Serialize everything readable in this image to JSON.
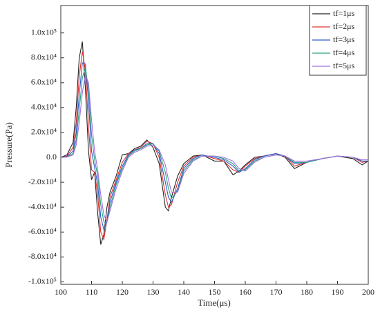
{
  "chart_data": {
    "type": "line",
    "xlabel": "Time(μs)",
    "ylabel": "Pressure(Pa)",
    "x": [
      100,
      102,
      104,
      105,
      106,
      107,
      108,
      109,
      110,
      111,
      112,
      113,
      114,
      115,
      116,
      118,
      120,
      122,
      124,
      126,
      128,
      130,
      132,
      134,
      135,
      136,
      138,
      140,
      143,
      146,
      150,
      153,
      156,
      158,
      160,
      163,
      166,
      170,
      173,
      176,
      180,
      185,
      190,
      195,
      198,
      200
    ],
    "series": [
      {
        "name": "tf=1μs",
        "color": "#222222",
        "values": [
          0,
          2000,
          12000,
          40000,
          80000,
          93000,
          55000,
          5000,
          -18000,
          -12000,
          -45000,
          -70000,
          -62000,
          -40000,
          -28000,
          -15000,
          2000,
          3000,
          7000,
          9000,
          14000,
          8000,
          -5000,
          -40000,
          -43000,
          -32000,
          -15000,
          -5000,
          1000,
          2000,
          -3000,
          -3000,
          -14000,
          -11000,
          -6000,
          0,
          1000,
          3000,
          0,
          -9000,
          -4000,
          -1000,
          1000,
          -1000,
          -6000,
          -3000
        ]
      },
      {
        "name": "tf=2μs",
        "color": "#e03030",
        "values": [
          0,
          1000,
          8000,
          28000,
          65000,
          85000,
          70000,
          25000,
          -10000,
          -12000,
          -30000,
          -60000,
          -66000,
          -50000,
          -32000,
          -18000,
          -4000,
          3000,
          6000,
          8000,
          13000,
          11000,
          0,
          -30000,
          -40000,
          -38000,
          -20000,
          -7000,
          0,
          2000,
          -1000,
          -3000,
          -10000,
          -12000,
          -7000,
          -1000,
          1000,
          3000,
          1000,
          -7000,
          -4000,
          -1000,
          1000,
          0,
          -4000,
          -3000
        ]
      },
      {
        "name": "tf=3μs",
        "color": "#2a5cc8",
        "values": [
          0,
          500,
          5000,
          20000,
          50000,
          76000,
          75000,
          45000,
          5000,
          -8000,
          -22000,
          -48000,
          -58000,
          -52000,
          -36000,
          -20000,
          -7000,
          2000,
          6000,
          7000,
          11000,
          11000,
          3000,
          -20000,
          -32000,
          -36000,
          -25000,
          -9000,
          -1000,
          2000,
          0,
          -2000,
          -7000,
          -12000,
          -9000,
          -2000,
          1000,
          3000,
          1000,
          -5000,
          -4000,
          -1000,
          1000,
          0,
          -3000,
          -3000
        ]
      },
      {
        "name": "tf=4μs",
        "color": "#2aa080",
        "values": [
          0,
          300,
          3000,
          14000,
          38000,
          64000,
          72000,
          55000,
          18000,
          -2000,
          -15000,
          -38000,
          -52000,
          -52000,
          -40000,
          -22000,
          -9000,
          1000,
          5000,
          7000,
          10000,
          11000,
          5000,
          -12000,
          -25000,
          -33000,
          -27000,
          -11000,
          -2000,
          1000,
          1000,
          -1000,
          -5000,
          -11000,
          -10000,
          -3000,
          0,
          2000,
          1000,
          -4000,
          -4000,
          -1000,
          1000,
          0,
          -2000,
          -2000
        ]
      },
      {
        "name": "tf=5μs",
        "color": "#a070e0",
        "values": [
          0,
          200,
          2000,
          10000,
          28000,
          52000,
          66000,
          60000,
          30000,
          5000,
          -10000,
          -30000,
          -46000,
          -52000,
          -43000,
          -25000,
          -11000,
          0,
          4000,
          6000,
          9000,
          10000,
          6000,
          -6000,
          -18000,
          -28000,
          -28000,
          -13000,
          -3000,
          1000,
          1000,
          0,
          -3000,
          -9000,
          -11000,
          -4000,
          0,
          2000,
          1000,
          -3000,
          -3000,
          -1000,
          1000,
          0,
          -2000,
          -2000
        ]
      }
    ],
    "xlim": [
      100,
      200
    ],
    "xticks": [
      100,
      110,
      120,
      130,
      140,
      150,
      160,
      170,
      180,
      190,
      200
    ],
    "ylim": [
      -102000,
      122000
    ],
    "yticks": [
      {
        "value": -100000,
        "label": "-1.0x10⁵"
      },
      {
        "value": -80000,
        "label": "-8.0x10⁴"
      },
      {
        "value": -60000,
        "label": "-6.0x10⁴"
      },
      {
        "value": -40000,
        "label": "-4.0x10⁴"
      },
      {
        "value": -20000,
        "label": "-2.0x10⁴"
      },
      {
        "value": 0,
        "label": "0.0"
      },
      {
        "value": 20000,
        "label": "2.0x10⁴"
      },
      {
        "value": 40000,
        "label": "4.0x10⁴"
      },
      {
        "value": 60000,
        "label": "6.0x10⁴"
      },
      {
        "value": 80000,
        "label": "8.0x10⁴"
      },
      {
        "value": 100000,
        "label": "1.0x10⁵"
      }
    ],
    "legend": "upper right",
    "grid": false
  }
}
